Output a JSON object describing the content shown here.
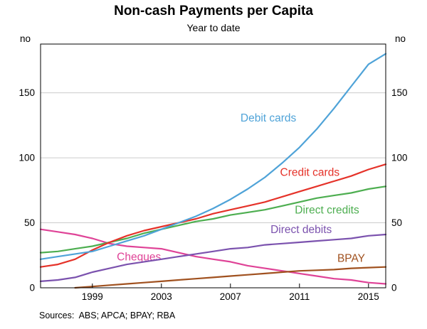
{
  "sources": "Sources:  ABS; APCA; BPAY; RBA",
  "chart_data": {
    "type": "line",
    "title": "Non-cash Payments per Capita",
    "subtitle": "Year to date",
    "unit": "no",
    "xlabel": "",
    "ylabel": "no",
    "xlim": [
      1996,
      2016
    ],
    "ylim": [
      0,
      187.5
    ],
    "xticks": [
      1999,
      2003,
      2007,
      2011,
      2015
    ],
    "yticks": [
      0,
      50,
      100,
      150
    ],
    "grid": "horizontal gridlines at 50, 100, 150",
    "legend": "inline labels next to lines",
    "x": [
      1996,
      1997,
      1998,
      1999,
      2000,
      2001,
      2002,
      2003,
      2004,
      2005,
      2006,
      2007,
      2008,
      2009,
      2010,
      2011,
      2012,
      2013,
      2014,
      2015,
      2016
    ],
    "series": [
      {
        "name": "Cheques",
        "color": "#DF4397",
        "values": [
          45,
          43,
          41,
          38,
          34,
          32,
          31,
          30,
          27,
          24,
          22,
          20,
          17,
          15,
          13,
          11,
          9,
          7,
          6,
          4,
          3
        ],
        "label_x": 2001.7,
        "label_y": 21
      },
      {
        "name": "Direct credits",
        "color": "#4DAE50",
        "values": [
          27,
          28,
          30,
          32,
          35,
          38,
          42,
          45,
          48,
          51,
          53,
          56,
          58,
          60,
          63,
          66,
          69,
          71,
          73,
          76,
          78
        ],
        "label_x": 2012.6,
        "label_y": 57
      },
      {
        "name": "Direct debits",
        "color": "#7B52AE",
        "values": [
          5,
          6,
          8,
          12,
          15,
          18,
          20,
          22,
          24,
          26,
          28,
          30,
          31,
          33,
          34,
          35,
          36,
          37,
          38,
          40,
          41
        ],
        "label_x": 2011.1,
        "label_y": 42
      },
      {
        "name": "BPAY",
        "color": "#A0511F",
        "values": [
          null,
          null,
          0,
          1,
          2,
          3,
          4,
          5,
          6,
          7,
          8,
          9,
          10,
          11,
          12,
          13,
          13.5,
          14,
          15,
          15.5,
          16
        ],
        "label_x": 2014.0,
        "label_y": 20
      },
      {
        "name": "Credit cards",
        "color": "#E53229",
        "values": [
          16,
          18,
          22,
          29,
          35,
          40,
          44,
          47,
          50,
          53,
          57,
          60,
          63,
          66,
          70,
          74,
          78,
          82,
          86,
          91,
          95
        ],
        "label_x": 2011.6,
        "label_y": 86
      },
      {
        "name": "Debit cards",
        "color": "#4FA3D8",
        "values": [
          22,
          24,
          26,
          28,
          32,
          36,
          40,
          45,
          50,
          55,
          61,
          68,
          76,
          85,
          96,
          108,
          122,
          138,
          155,
          172,
          180
        ],
        "label_x": 2009.2,
        "label_y": 128
      }
    ]
  }
}
